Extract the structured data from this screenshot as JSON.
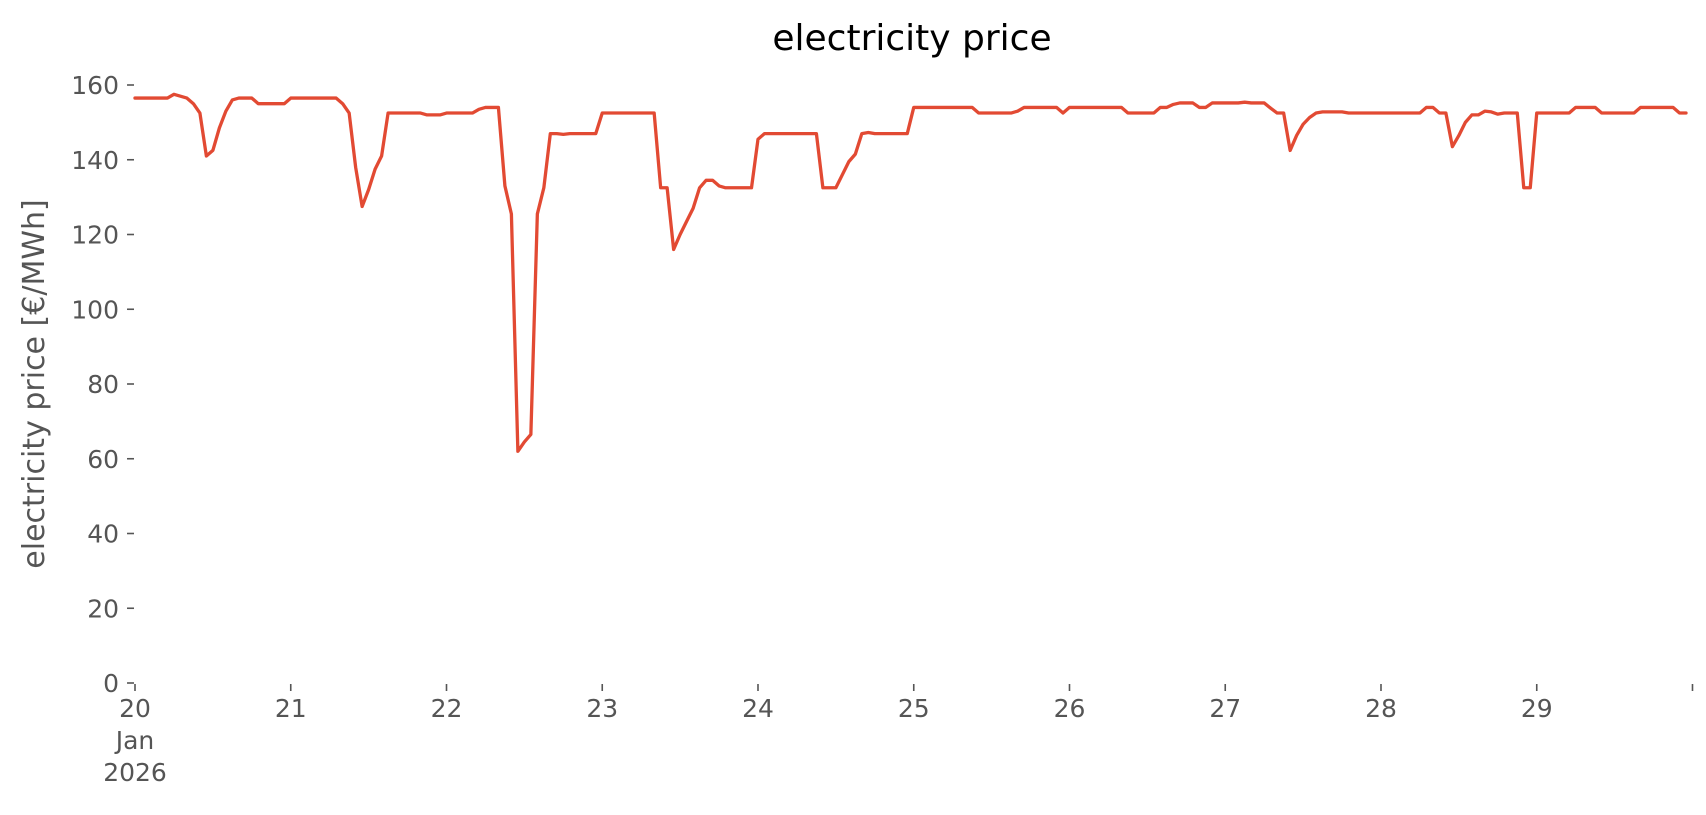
{
  "chart_data": {
    "type": "line",
    "title": "electricity price",
    "xlabel": "",
    "ylabel": "electricity price [€/MWh]",
    "xlim": [
      "2026-01-20 00:00",
      "2026-01-29 23:00"
    ],
    "ylim": [
      0,
      160
    ],
    "yticks": [
      0,
      20,
      40,
      60,
      80,
      100,
      120,
      140,
      160
    ],
    "xticks": [
      {
        "x": "2026-01-20",
        "label": "20",
        "sublabels": [
          "Jan",
          "2026"
        ]
      },
      {
        "x": "2026-01-21",
        "label": "21"
      },
      {
        "x": "2026-01-22",
        "label": "22"
      },
      {
        "x": "2026-01-23",
        "label": "23"
      },
      {
        "x": "2026-01-24",
        "label": "24"
      },
      {
        "x": "2026-01-25",
        "label": "25"
      },
      {
        "x": "2026-01-26",
        "label": "26"
      },
      {
        "x": "2026-01-27",
        "label": "27"
      },
      {
        "x": "2026-01-28",
        "label": "28"
      },
      {
        "x": "2026-01-29",
        "label": "29"
      },
      {
        "x": "2026-01-30",
        "label": ""
      }
    ],
    "grid": false,
    "color": "#E24A33",
    "series": [
      {
        "points": [
          [
            "2026-01-20 00:00",
            156.5
          ],
          [
            "2026-01-20 01:00",
            156.5
          ],
          [
            "2026-01-20 02:00",
            156.5
          ],
          [
            "2026-01-20 03:00",
            156.5
          ],
          [
            "2026-01-20 04:00",
            156.5
          ],
          [
            "2026-01-20 05:00",
            156.5
          ],
          [
            "2026-01-20 06:00",
            157.5
          ],
          [
            "2026-01-20 07:00",
            157
          ],
          [
            "2026-01-20 08:00",
            156.5
          ],
          [
            "2026-01-20 09:00",
            155
          ],
          [
            "2026-01-20 10:00",
            152.5
          ],
          [
            "2026-01-20 11:00",
            141
          ],
          [
            "2026-01-20 12:00",
            142.5
          ],
          [
            "2026-01-20 13:00",
            148.5
          ],
          [
            "2026-01-20 14:00",
            153
          ],
          [
            "2026-01-20 15:00",
            156
          ],
          [
            "2026-01-20 16:00",
            156.5
          ],
          [
            "2026-01-20 17:00",
            156.5
          ],
          [
            "2026-01-20 18:00",
            156.5
          ],
          [
            "2026-01-20 19:00",
            155
          ],
          [
            "2026-01-20 20:00",
            155
          ],
          [
            "2026-01-20 21:00",
            155
          ],
          [
            "2026-01-20 22:00",
            155
          ],
          [
            "2026-01-20 23:00",
            155
          ],
          [
            "2026-01-21 00:00",
            156.5
          ],
          [
            "2026-01-21 01:00",
            156.5
          ],
          [
            "2026-01-21 02:00",
            156.5
          ],
          [
            "2026-01-21 03:00",
            156.5
          ],
          [
            "2026-01-21 04:00",
            156.5
          ],
          [
            "2026-01-21 05:00",
            156.5
          ],
          [
            "2026-01-21 06:00",
            156.5
          ],
          [
            "2026-01-21 07:00",
            156.5
          ],
          [
            "2026-01-21 08:00",
            155
          ],
          [
            "2026-01-21 09:00",
            152.5
          ],
          [
            "2026-01-21 10:00",
            138
          ],
          [
            "2026-01-21 11:00",
            127.5
          ],
          [
            "2026-01-21 12:00",
            132
          ],
          [
            "2026-01-21 13:00",
            137.5
          ],
          [
            "2026-01-21 14:00",
            141
          ],
          [
            "2026-01-21 15:00",
            152.5
          ],
          [
            "2026-01-21 16:00",
            152.5
          ],
          [
            "2026-01-21 17:00",
            152.5
          ],
          [
            "2026-01-21 18:00",
            152.5
          ],
          [
            "2026-01-21 19:00",
            152.5
          ],
          [
            "2026-01-21 20:00",
            152.5
          ],
          [
            "2026-01-21 21:00",
            152
          ],
          [
            "2026-01-21 22:00",
            152
          ],
          [
            "2026-01-21 23:00",
            152
          ],
          [
            "2026-01-22 00:00",
            152.5
          ],
          [
            "2026-01-22 01:00",
            152.5
          ],
          [
            "2026-01-22 02:00",
            152.5
          ],
          [
            "2026-01-22 03:00",
            152.5
          ],
          [
            "2026-01-22 04:00",
            152.5
          ],
          [
            "2026-01-22 05:00",
            153.5
          ],
          [
            "2026-01-22 06:00",
            154
          ],
          [
            "2026-01-22 07:00",
            154
          ],
          [
            "2026-01-22 08:00",
            154
          ],
          [
            "2026-01-22 09:00",
            133
          ],
          [
            "2026-01-22 10:00",
            125.5
          ],
          [
            "2026-01-22 11:00",
            62
          ],
          [
            "2026-01-22 12:00",
            64.5
          ],
          [
            "2026-01-22 13:00",
            66.5
          ],
          [
            "2026-01-22 14:00",
            125.5
          ],
          [
            "2026-01-22 15:00",
            132.5
          ],
          [
            "2026-01-22 16:00",
            147
          ],
          [
            "2026-01-22 17:00",
            147
          ],
          [
            "2026-01-22 18:00",
            146.8
          ],
          [
            "2026-01-22 19:00",
            147
          ],
          [
            "2026-01-22 20:00",
            147
          ],
          [
            "2026-01-22 21:00",
            147
          ],
          [
            "2026-01-22 22:00",
            147
          ],
          [
            "2026-01-22 23:00",
            147
          ],
          [
            "2026-01-23 00:00",
            152.5
          ],
          [
            "2026-01-23 01:00",
            152.5
          ],
          [
            "2026-01-23 02:00",
            152.5
          ],
          [
            "2026-01-23 03:00",
            152.5
          ],
          [
            "2026-01-23 04:00",
            152.5
          ],
          [
            "2026-01-23 05:00",
            152.5
          ],
          [
            "2026-01-23 06:00",
            152.5
          ],
          [
            "2026-01-23 07:00",
            152.5
          ],
          [
            "2026-01-23 08:00",
            152.5
          ],
          [
            "2026-01-23 09:00",
            132.5
          ],
          [
            "2026-01-23 10:00",
            132.5
          ],
          [
            "2026-01-23 11:00",
            116
          ],
          [
            "2026-01-23 12:00",
            120
          ],
          [
            "2026-01-23 13:00",
            123.5
          ],
          [
            "2026-01-23 14:00",
            127
          ],
          [
            "2026-01-23 15:00",
            132.5
          ],
          [
            "2026-01-23 16:00",
            134.5
          ],
          [
            "2026-01-23 17:00",
            134.5
          ],
          [
            "2026-01-23 18:00",
            133
          ],
          [
            "2026-01-23 19:00",
            132.5
          ],
          [
            "2026-01-23 20:00",
            132.5
          ],
          [
            "2026-01-23 21:00",
            132.5
          ],
          [
            "2026-01-23 22:00",
            132.5
          ],
          [
            "2026-01-23 23:00",
            132.5
          ],
          [
            "2026-01-24 00:00",
            145.5
          ],
          [
            "2026-01-24 01:00",
            147
          ],
          [
            "2026-01-24 02:00",
            147
          ],
          [
            "2026-01-24 03:00",
            147
          ],
          [
            "2026-01-24 04:00",
            147
          ],
          [
            "2026-01-24 05:00",
            147
          ],
          [
            "2026-01-24 06:00",
            147
          ],
          [
            "2026-01-24 07:00",
            147
          ],
          [
            "2026-01-24 08:00",
            147
          ],
          [
            "2026-01-24 09:00",
            147
          ],
          [
            "2026-01-24 10:00",
            132.5
          ],
          [
            "2026-01-24 11:00",
            132.5
          ],
          [
            "2026-01-24 12:00",
            132.5
          ],
          [
            "2026-01-24 13:00",
            136
          ],
          [
            "2026-01-24 14:00",
            139.5
          ],
          [
            "2026-01-24 15:00",
            141.5
          ],
          [
            "2026-01-24 16:00",
            147
          ],
          [
            "2026-01-24 17:00",
            147.3
          ],
          [
            "2026-01-24 18:00",
            147
          ],
          [
            "2026-01-24 19:00",
            147
          ],
          [
            "2026-01-24 20:00",
            147
          ],
          [
            "2026-01-24 21:00",
            147
          ],
          [
            "2026-01-24 22:00",
            147
          ],
          [
            "2026-01-24 23:00",
            147
          ],
          [
            "2026-01-25 00:00",
            154
          ],
          [
            "2026-01-25 01:00",
            154
          ],
          [
            "2026-01-25 02:00",
            154
          ],
          [
            "2026-01-25 03:00",
            154
          ],
          [
            "2026-01-25 04:00",
            154
          ],
          [
            "2026-01-25 05:00",
            154
          ],
          [
            "2026-01-25 06:00",
            154
          ],
          [
            "2026-01-25 07:00",
            154
          ],
          [
            "2026-01-25 08:00",
            154
          ],
          [
            "2026-01-25 09:00",
            154
          ],
          [
            "2026-01-25 10:00",
            152.5
          ],
          [
            "2026-01-25 11:00",
            152.5
          ],
          [
            "2026-01-25 12:00",
            152.5
          ],
          [
            "2026-01-25 13:00",
            152.5
          ],
          [
            "2026-01-25 14:00",
            152.5
          ],
          [
            "2026-01-25 15:00",
            152.5
          ],
          [
            "2026-01-25 16:00",
            153
          ],
          [
            "2026-01-25 17:00",
            154
          ],
          [
            "2026-01-25 18:00",
            154
          ],
          [
            "2026-01-25 19:00",
            154
          ],
          [
            "2026-01-25 20:00",
            154
          ],
          [
            "2026-01-25 21:00",
            154
          ],
          [
            "2026-01-25 22:00",
            154
          ],
          [
            "2026-01-25 23:00",
            152.5
          ],
          [
            "2026-01-26 00:00",
            154
          ],
          [
            "2026-01-26 01:00",
            154
          ],
          [
            "2026-01-26 02:00",
            154
          ],
          [
            "2026-01-26 03:00",
            154
          ],
          [
            "2026-01-26 04:00",
            154
          ],
          [
            "2026-01-26 05:00",
            154
          ],
          [
            "2026-01-26 06:00",
            154
          ],
          [
            "2026-01-26 07:00",
            154
          ],
          [
            "2026-01-26 08:00",
            154
          ],
          [
            "2026-01-26 09:00",
            152.5
          ],
          [
            "2026-01-26 10:00",
            152.5
          ],
          [
            "2026-01-26 11:00",
            152.5
          ],
          [
            "2026-01-26 12:00",
            152.5
          ],
          [
            "2026-01-26 13:00",
            152.5
          ],
          [
            "2026-01-26 14:00",
            154
          ],
          [
            "2026-01-26 15:00",
            154
          ],
          [
            "2026-01-26 16:00",
            154.8
          ],
          [
            "2026-01-26 17:00",
            155.2
          ],
          [
            "2026-01-26 18:00",
            155.2
          ],
          [
            "2026-01-26 19:00",
            155.2
          ],
          [
            "2026-01-26 20:00",
            154
          ],
          [
            "2026-01-26 21:00",
            154
          ],
          [
            "2026-01-26 22:00",
            155.2
          ],
          [
            "2026-01-26 23:00",
            155.2
          ],
          [
            "2026-01-27 00:00",
            155.2
          ],
          [
            "2026-01-27 01:00",
            155.2
          ],
          [
            "2026-01-27 02:00",
            155.2
          ],
          [
            "2026-01-27 03:00",
            155.4
          ],
          [
            "2026-01-27 04:00",
            155.2
          ],
          [
            "2026-01-27 05:00",
            155.2
          ],
          [
            "2026-01-27 06:00",
            155.2
          ],
          [
            "2026-01-27 07:00",
            153.8
          ],
          [
            "2026-01-27 08:00",
            152.5
          ],
          [
            "2026-01-27 09:00",
            152.5
          ],
          [
            "2026-01-27 10:00",
            142.5
          ],
          [
            "2026-01-27 11:00",
            146.5
          ],
          [
            "2026-01-27 12:00",
            149.5
          ],
          [
            "2026-01-27 13:00",
            151.3
          ],
          [
            "2026-01-27 14:00",
            152.5
          ],
          [
            "2026-01-27 15:00",
            152.8
          ],
          [
            "2026-01-27 16:00",
            152.8
          ],
          [
            "2026-01-27 17:00",
            152.8
          ],
          [
            "2026-01-27 18:00",
            152.8
          ],
          [
            "2026-01-27 19:00",
            152.5
          ],
          [
            "2026-01-27 20:00",
            152.5
          ],
          [
            "2026-01-27 21:00",
            152.5
          ],
          [
            "2026-01-27 22:00",
            152.5
          ],
          [
            "2026-01-27 23:00",
            152.5
          ],
          [
            "2026-01-28 00:00",
            152.5
          ],
          [
            "2026-01-28 01:00",
            152.5
          ],
          [
            "2026-01-28 02:00",
            152.5
          ],
          [
            "2026-01-28 03:00",
            152.5
          ],
          [
            "2026-01-28 04:00",
            152.5
          ],
          [
            "2026-01-28 05:00",
            152.5
          ],
          [
            "2026-01-28 06:00",
            152.5
          ],
          [
            "2026-01-28 07:00",
            154
          ],
          [
            "2026-01-28 08:00",
            154
          ],
          [
            "2026-01-28 09:00",
            152.5
          ],
          [
            "2026-01-28 10:00",
            152.5
          ],
          [
            "2026-01-28 11:00",
            143.5
          ],
          [
            "2026-01-28 12:00",
            146.5
          ],
          [
            "2026-01-28 13:00",
            150
          ],
          [
            "2026-01-28 14:00",
            152
          ],
          [
            "2026-01-28 15:00",
            152
          ],
          [
            "2026-01-28 16:00",
            153
          ],
          [
            "2026-01-28 17:00",
            152.8
          ],
          [
            "2026-01-28 18:00",
            152.2
          ],
          [
            "2026-01-28 19:00",
            152.5
          ],
          [
            "2026-01-28 20:00",
            152.5
          ],
          [
            "2026-01-28 21:00",
            152.5
          ],
          [
            "2026-01-28 22:00",
            132.5
          ],
          [
            "2026-01-28 23:00",
            132.5
          ],
          [
            "2026-01-29 00:00",
            152.5
          ],
          [
            "2026-01-29 01:00",
            152.5
          ],
          [
            "2026-01-29 02:00",
            152.5
          ],
          [
            "2026-01-29 03:00",
            152.5
          ],
          [
            "2026-01-29 04:00",
            152.5
          ],
          [
            "2026-01-29 05:00",
            152.5
          ],
          [
            "2026-01-29 06:00",
            154
          ],
          [
            "2026-01-29 07:00",
            154
          ],
          [
            "2026-01-29 08:00",
            154
          ],
          [
            "2026-01-29 09:00",
            154
          ],
          [
            "2026-01-29 10:00",
            152.5
          ],
          [
            "2026-01-29 11:00",
            152.5
          ],
          [
            "2026-01-29 12:00",
            152.5
          ],
          [
            "2026-01-29 13:00",
            152.5
          ],
          [
            "2026-01-29 14:00",
            152.5
          ],
          [
            "2026-01-29 15:00",
            152.5
          ],
          [
            "2026-01-29 16:00",
            154
          ],
          [
            "2026-01-29 17:00",
            154
          ],
          [
            "2026-01-29 18:00",
            154
          ],
          [
            "2026-01-29 19:00",
            154
          ],
          [
            "2026-01-29 20:00",
            154
          ],
          [
            "2026-01-29 21:00",
            154
          ],
          [
            "2026-01-29 22:00",
            152.5
          ],
          [
            "2026-01-29 23:00",
            152.5
          ]
        ]
      }
    ]
  }
}
